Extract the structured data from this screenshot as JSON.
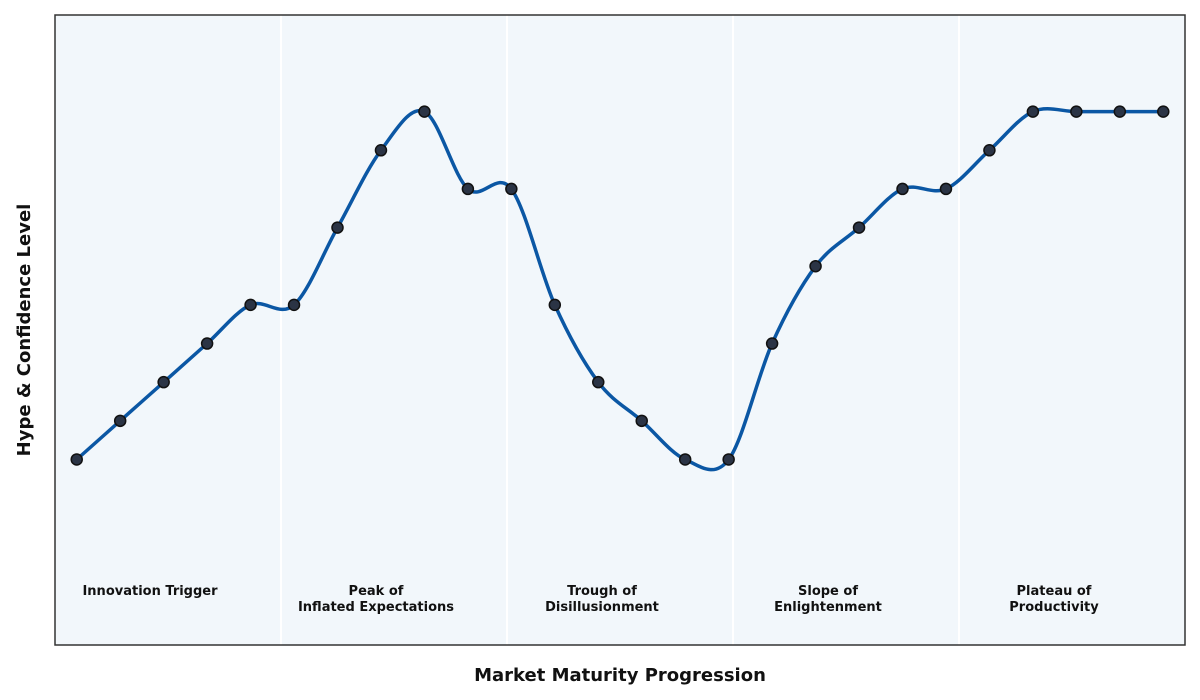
{
  "chart_data": {
    "type": "line",
    "title": "",
    "xlabel": "Market Maturity Progression",
    "ylabel": "Hype & Confidence Level",
    "grid": false,
    "legend": "none",
    "phases": [
      {
        "label": "Innovation Trigger"
      },
      {
        "label": "Peak of Inflated Expectations"
      },
      {
        "label": "Trough of Disillusionment"
      },
      {
        "label": "Slope of Enlightenment"
      },
      {
        "label": "Plateau of Productivity"
      }
    ],
    "x": [
      0,
      1,
      2,
      3,
      4,
      5,
      6,
      7,
      8,
      9,
      10,
      11,
      12,
      13,
      14,
      15,
      16,
      17,
      18,
      19,
      20,
      21,
      22,
      23,
      24,
      25
    ],
    "series": [
      {
        "values": [
          1,
          2,
          3,
          4,
          5,
          5,
          7,
          9,
          10,
          8,
          8,
          5,
          3,
          2,
          1,
          1,
          4,
          6,
          7,
          8,
          8,
          9,
          10,
          10,
          10,
          10
        ]
      }
    ],
    "xlim": [
      -0.5,
      25.5
    ],
    "ylim": [
      -3.8,
      12.5
    ],
    "colors": {
      "line": "#0b57a4",
      "marker_fill": "#2b3445",
      "marker_edge": "#111111",
      "plot_background": "#f2f7fb",
      "phase_divider": "#ffffff",
      "frame": "#333333"
    }
  }
}
